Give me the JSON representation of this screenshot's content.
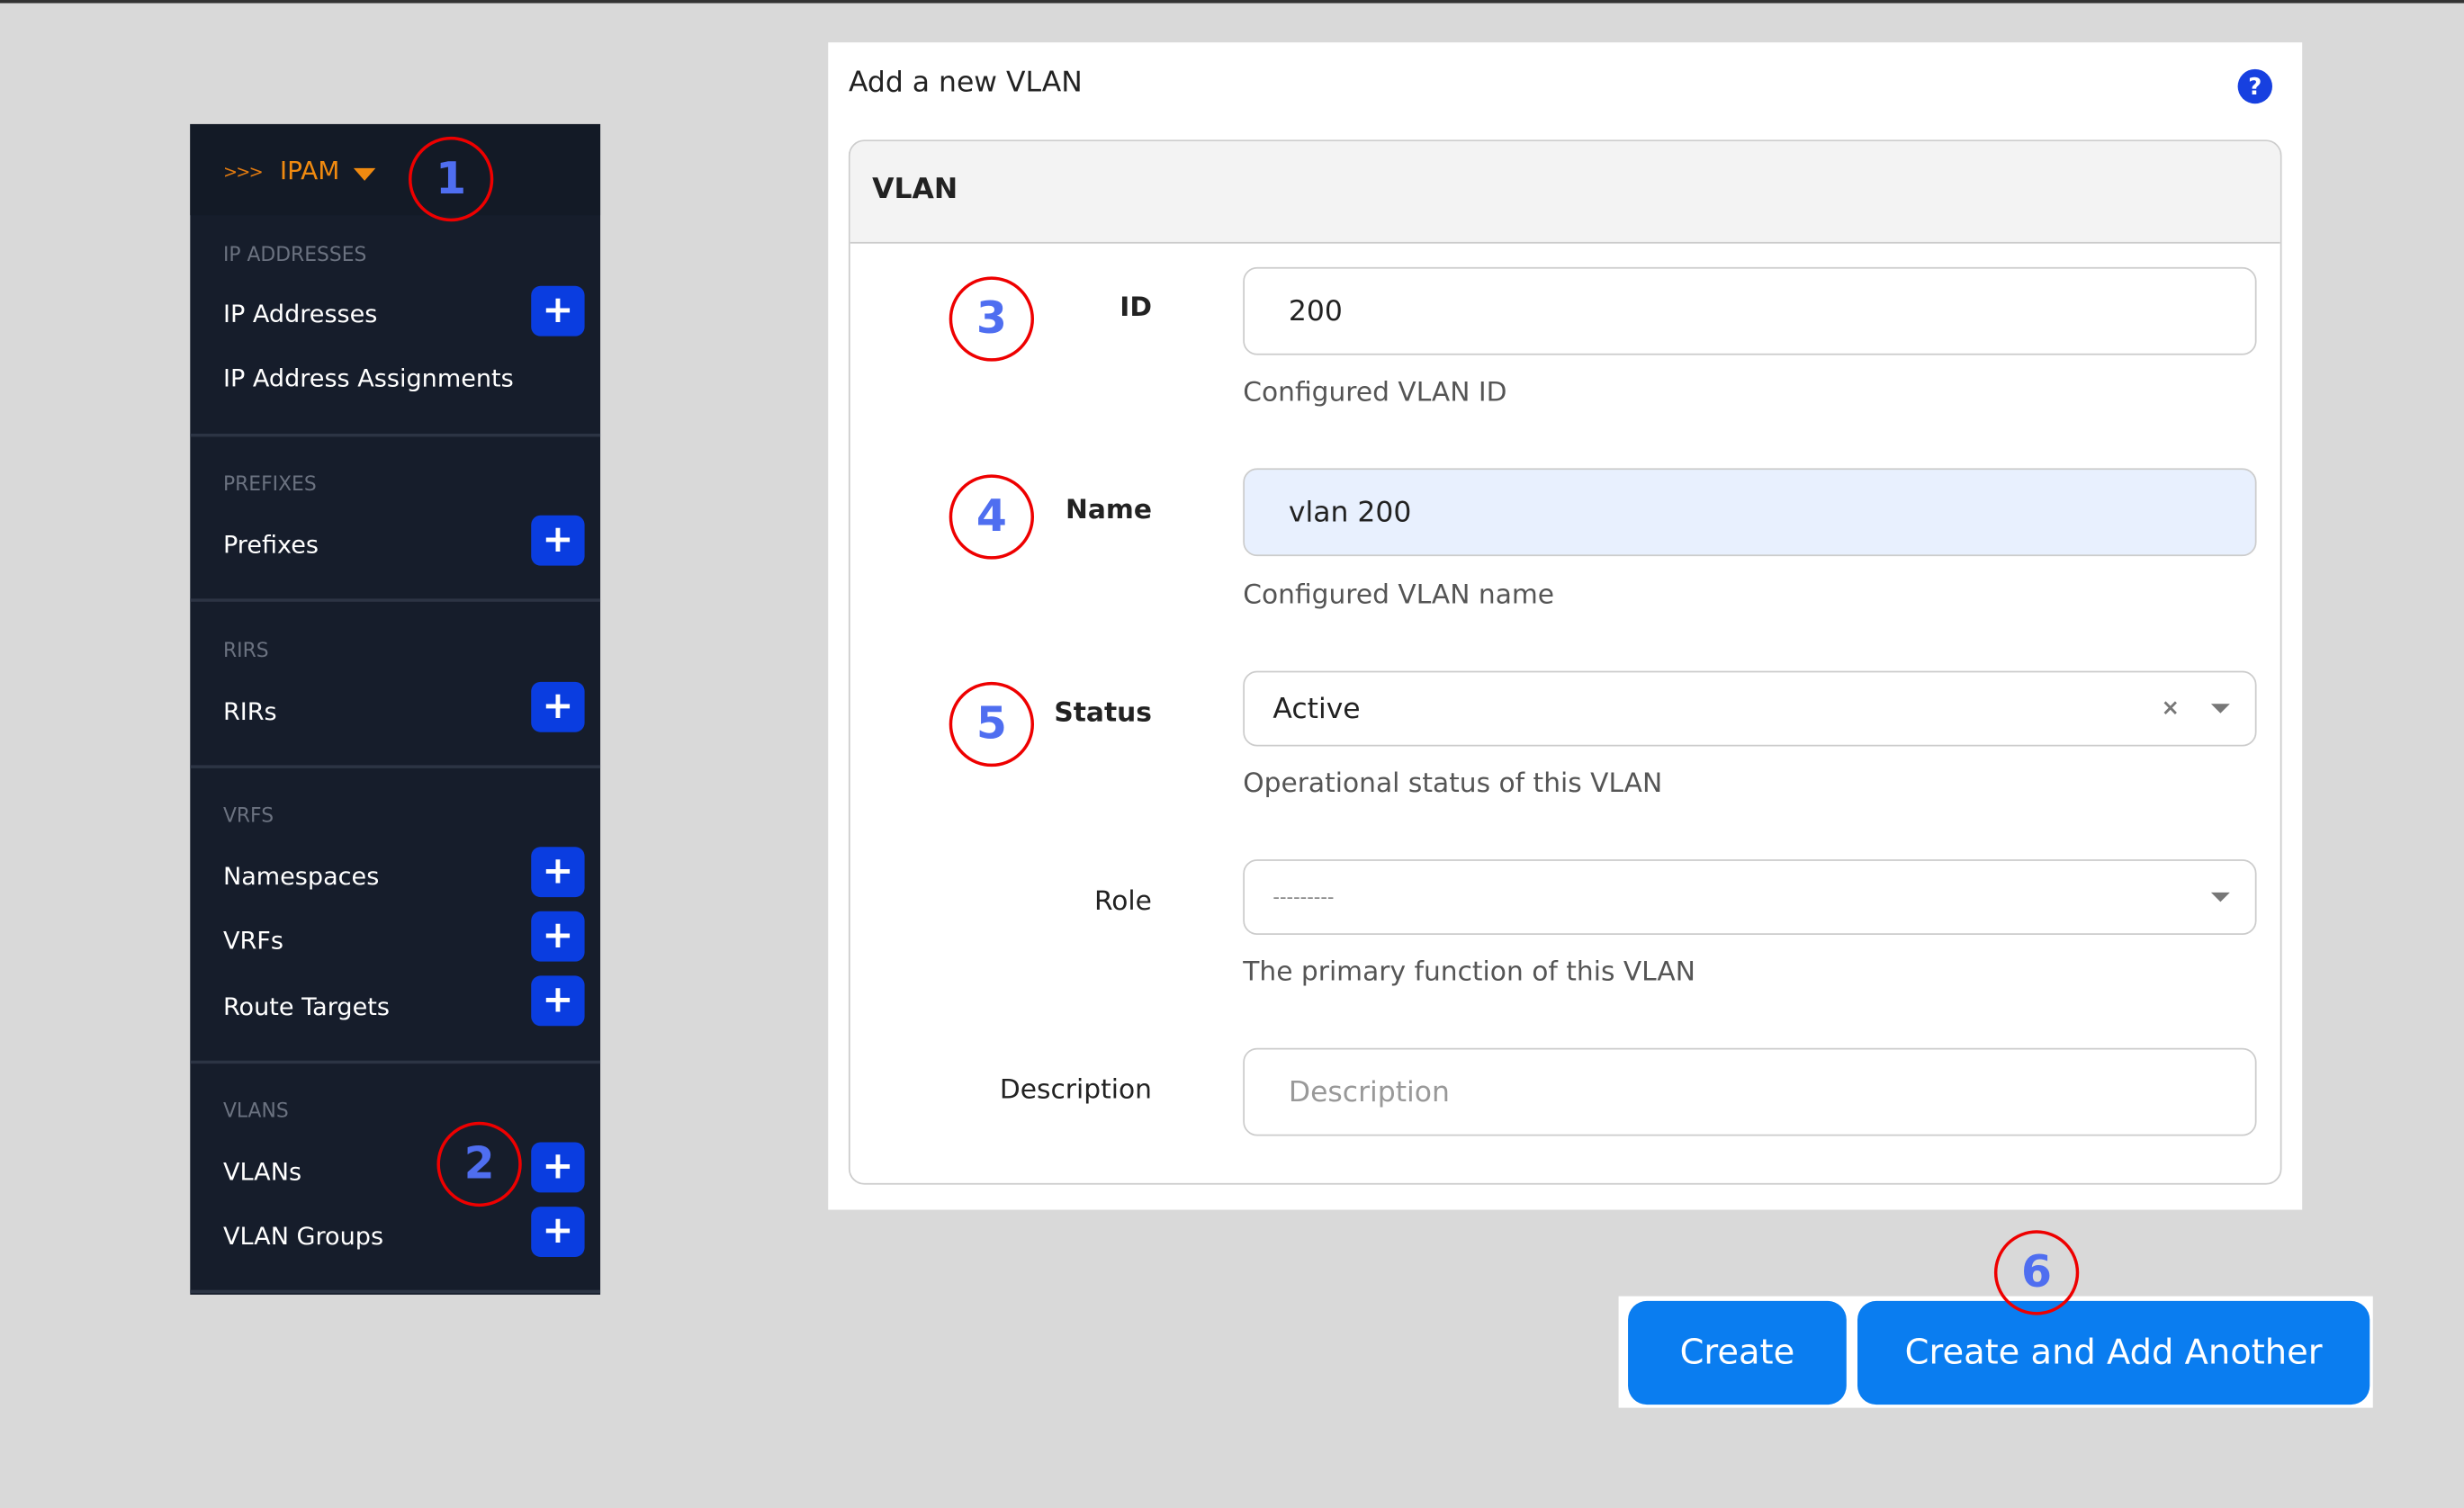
{
  "sidebar": {
    "menu_chevrons": ">>>",
    "menu_title": "IPAM",
    "sections": [
      {
        "header": "IP ADDRESSES",
        "items": [
          {
            "label": "IP Addresses",
            "add": true
          },
          {
            "label": "IP Address Assignments",
            "add": false
          }
        ]
      },
      {
        "header": "PREFIXES",
        "items": [
          {
            "label": "Prefixes",
            "add": true
          }
        ]
      },
      {
        "header": "RIRS",
        "items": [
          {
            "label": "RIRs",
            "add": true
          }
        ]
      },
      {
        "header": "VRFS",
        "items": [
          {
            "label": "Namespaces",
            "add": true
          },
          {
            "label": "VRFs",
            "add": true
          },
          {
            "label": "Route Targets",
            "add": true
          }
        ]
      },
      {
        "header": "VLANS",
        "items": [
          {
            "label": "VLANs",
            "add": true
          },
          {
            "label": "VLAN Groups",
            "add": true
          }
        ]
      }
    ],
    "add_icon": "+"
  },
  "form": {
    "title": "Add a new VLAN",
    "help_icon": "?",
    "card_title": "VLAN",
    "fields": {
      "id": {
        "label": "ID",
        "value": "200",
        "help": "Configured VLAN ID"
      },
      "name": {
        "label": "Name",
        "value": "vlan 200",
        "help": "Configured VLAN name"
      },
      "status": {
        "label": "Status",
        "value": "Active",
        "clear": "×",
        "help": "Operational status of this VLAN"
      },
      "role": {
        "label": "Role",
        "placeholder": "---------",
        "help": "The primary function of this VLAN"
      },
      "description": {
        "label": "Description",
        "placeholder": "Description"
      }
    }
  },
  "buttons": {
    "create": "Create",
    "create_add_another": "Create and Add Another"
  },
  "annotations": [
    "1",
    "2",
    "3",
    "4",
    "5",
    "6"
  ],
  "colors": {
    "sidebar_bg": "#161d2b",
    "accent_orange": "#f08a10",
    "add_button": "#0a3de0",
    "primary_button": "#0a7df0",
    "annotation_ring": "#e00000",
    "annotation_number": "#4f6ef0",
    "focused_input": "#e8f0fe"
  }
}
